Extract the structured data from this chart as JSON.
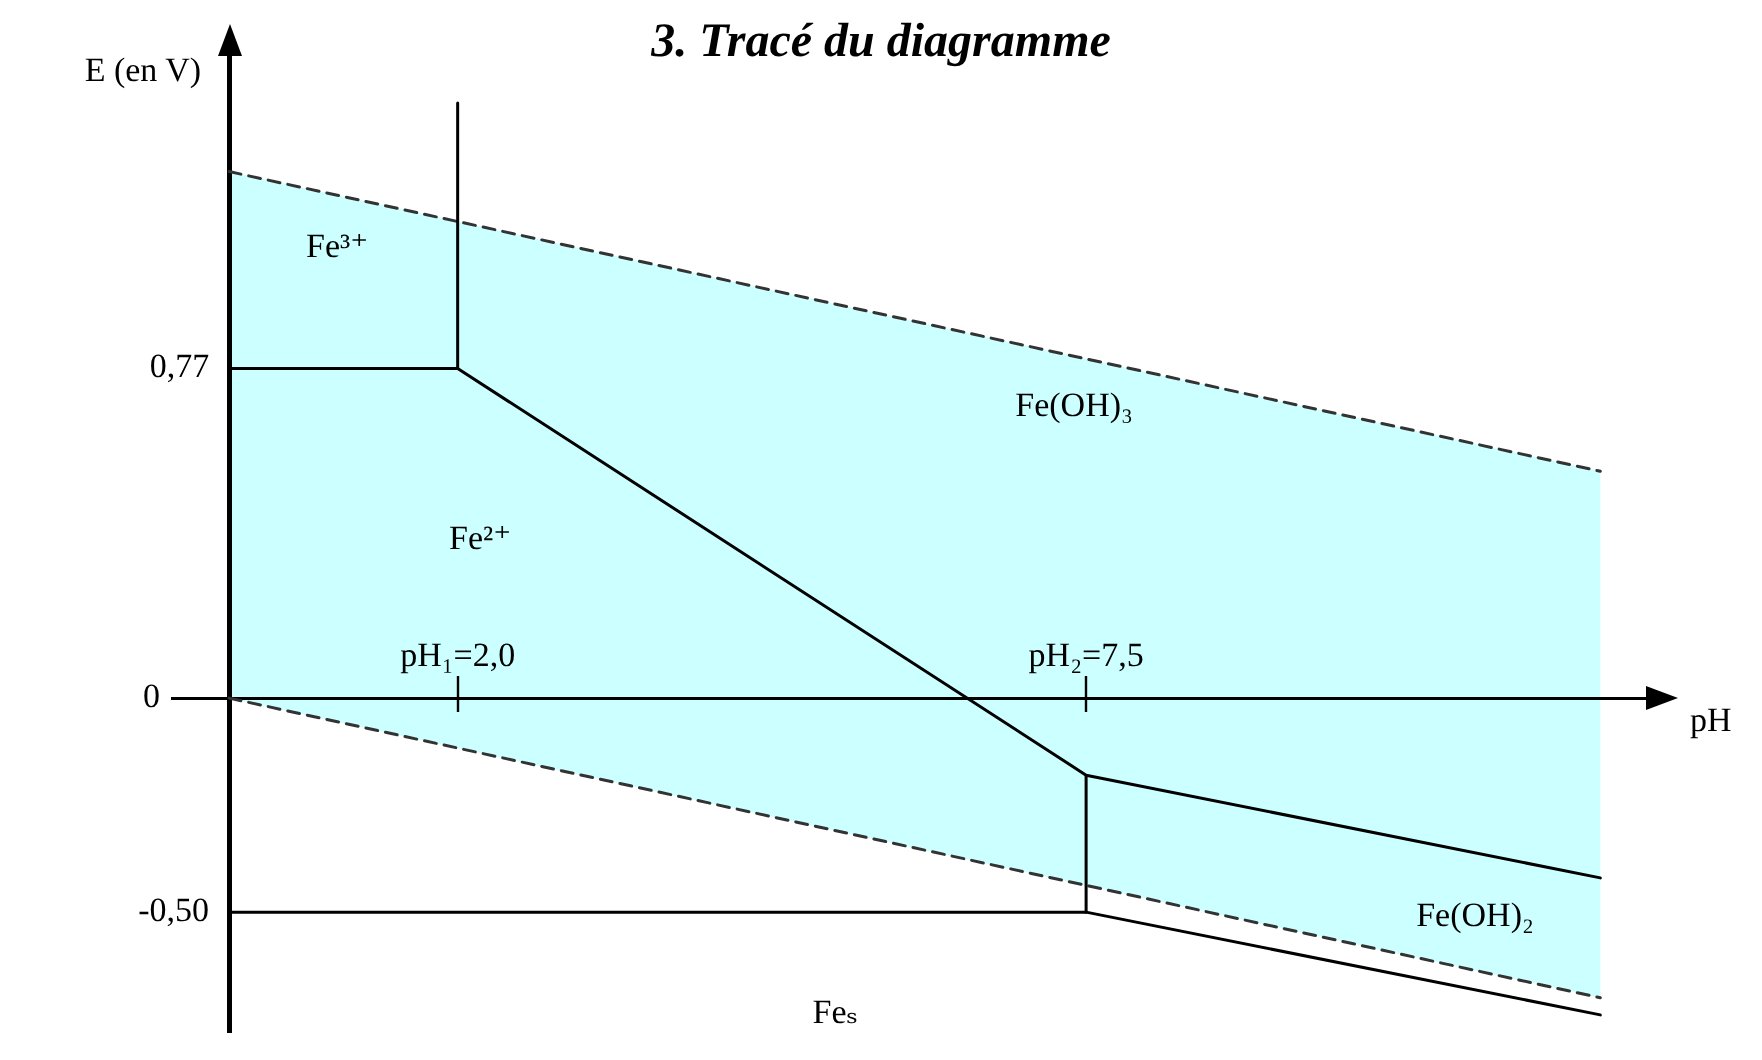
{
  "chart_data": {
    "type": "line",
    "title": "3. Tracé du diagramme",
    "xlabel": "pH",
    "ylabel": "E (en V)",
    "xlim": [
      -0.5,
      12.4
    ],
    "ylim": [
      -0.78,
      1.5
    ],
    "xticks": [
      {
        "value": 2,
        "label": "pH₁=2,0"
      },
      {
        "value": 7.5,
        "label": "pH₂=7,5"
      }
    ],
    "yticks": [
      {
        "value": 0.77,
        "label": "0,77"
      },
      0,
      {
        "value": -0.5,
        "label": "-0,50"
      }
    ],
    "grid": false,
    "legend": false,
    "marker": "none",
    "series": [
      {
        "color": "#333333",
        "line_style": "dashed",
        "x": [
          0,
          12
        ],
        "values": [
          1.23,
          0.53
        ],
        "lower": [
          0,
          -0.7
        ],
        "upper": [
          1.23,
          0.53
        ]
      },
      {
        "color": "#333333",
        "line_style": "dashed",
        "x": [
          0,
          12
        ],
        "values": [
          0,
          -0.7
        ]
      },
      {
        "color": "#000000",
        "x": [
          0,
          2
        ],
        "values": [
          0.77,
          0.77
        ]
      },
      {
        "color": "#000000",
        "x": [
          2,
          2
        ],
        "values": [
          0.77,
          1.39
        ]
      },
      {
        "color": "#000000",
        "x": [
          2,
          7.5,
          12
        ],
        "values": [
          0.77,
          -0.18,
          -0.42
        ]
      },
      {
        "color": "#000000",
        "x": [
          7.5,
          7.5
        ],
        "values": [
          -0.18,
          -0.5
        ]
      },
      {
        "color": "#000000",
        "x": [
          0,
          7.5,
          12
        ],
        "values": [
          -0.5,
          -0.5,
          -0.74
        ]
      }
    ],
    "annotations": [
      "Fe³⁺",
      "Fe²⁺",
      "Fe(OH)₃",
      "Fe(OH)₂",
      "Feₛ"
    ]
  }
}
